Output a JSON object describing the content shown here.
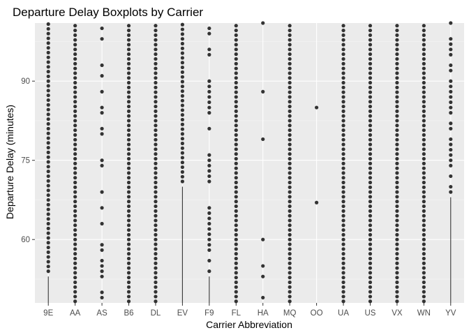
{
  "chart_data": {
    "type": "boxplot",
    "title": "Departure Delay Boxplots by Carrier",
    "xlabel": "Carrier Abbreviation",
    "ylabel": "Departure Delay (minutes)",
    "ylim": [
      48,
      101
    ],
    "yticks": [
      60,
      75,
      90
    ],
    "colors": {
      "panel": "#ebebeb",
      "grid_major": "#ffffff",
      "grid_minor": "#f5f5f5",
      "point": "#333333",
      "whisker": "#333333"
    },
    "carriers": [
      {
        "name": "9E",
        "whisker_top": 53,
        "outliers": "dense"
      },
      {
        "name": "AA",
        "whisker_top": null,
        "outliers": "dense"
      },
      {
        "name": "AS",
        "whisker_top": null,
        "outliers": [
          49,
          50,
          53,
          54,
          55,
          56,
          58,
          59,
          63,
          66,
          69,
          74,
          75,
          80,
          81,
          84,
          85,
          88,
          91,
          93,
          98,
          100
        ]
      },
      {
        "name": "B6",
        "whisker_top": null,
        "outliers": "dense"
      },
      {
        "name": "DL",
        "whisker_top": null,
        "outliers": "dense"
      },
      {
        "name": "EV",
        "whisker_top": 70,
        "outliers": "dense"
      },
      {
        "name": "F9",
        "whisker_top": 53,
        "outliers": [
          54,
          56,
          58,
          59,
          60,
          61,
          62,
          63,
          64,
          65,
          66,
          71,
          72,
          73,
          74,
          75,
          76,
          81,
          84,
          85,
          86,
          87,
          88,
          89,
          90,
          95,
          96,
          99,
          100
        ]
      },
      {
        "name": "FL",
        "whisker_top": null,
        "outliers": "dense"
      },
      {
        "name": "HA",
        "whisker_top": null,
        "outliers": [
          49,
          53,
          55,
          60,
          79,
          88,
          101,
          102
        ]
      },
      {
        "name": "MQ",
        "whisker_top": null,
        "outliers": "dense"
      },
      {
        "name": "OO",
        "whisker_top": null,
        "outliers": [
          67,
          85
        ]
      },
      {
        "name": "UA",
        "whisker_top": null,
        "outliers": "dense"
      },
      {
        "name": "US",
        "whisker_top": null,
        "outliers": "dense"
      },
      {
        "name": "VX",
        "whisker_top": null,
        "outliers": "dense"
      },
      {
        "name": "WN",
        "whisker_top": null,
        "outliers": "dense"
      },
      {
        "name": "YV",
        "whisker_top": 68,
        "outliers": [
          69,
          70,
          72,
          74,
          75,
          76,
          77,
          78,
          79,
          81,
          82,
          84,
          85,
          86,
          87,
          88,
          89,
          90,
          92,
          93,
          95,
          96,
          97,
          98,
          101,
          102
        ]
      }
    ]
  }
}
